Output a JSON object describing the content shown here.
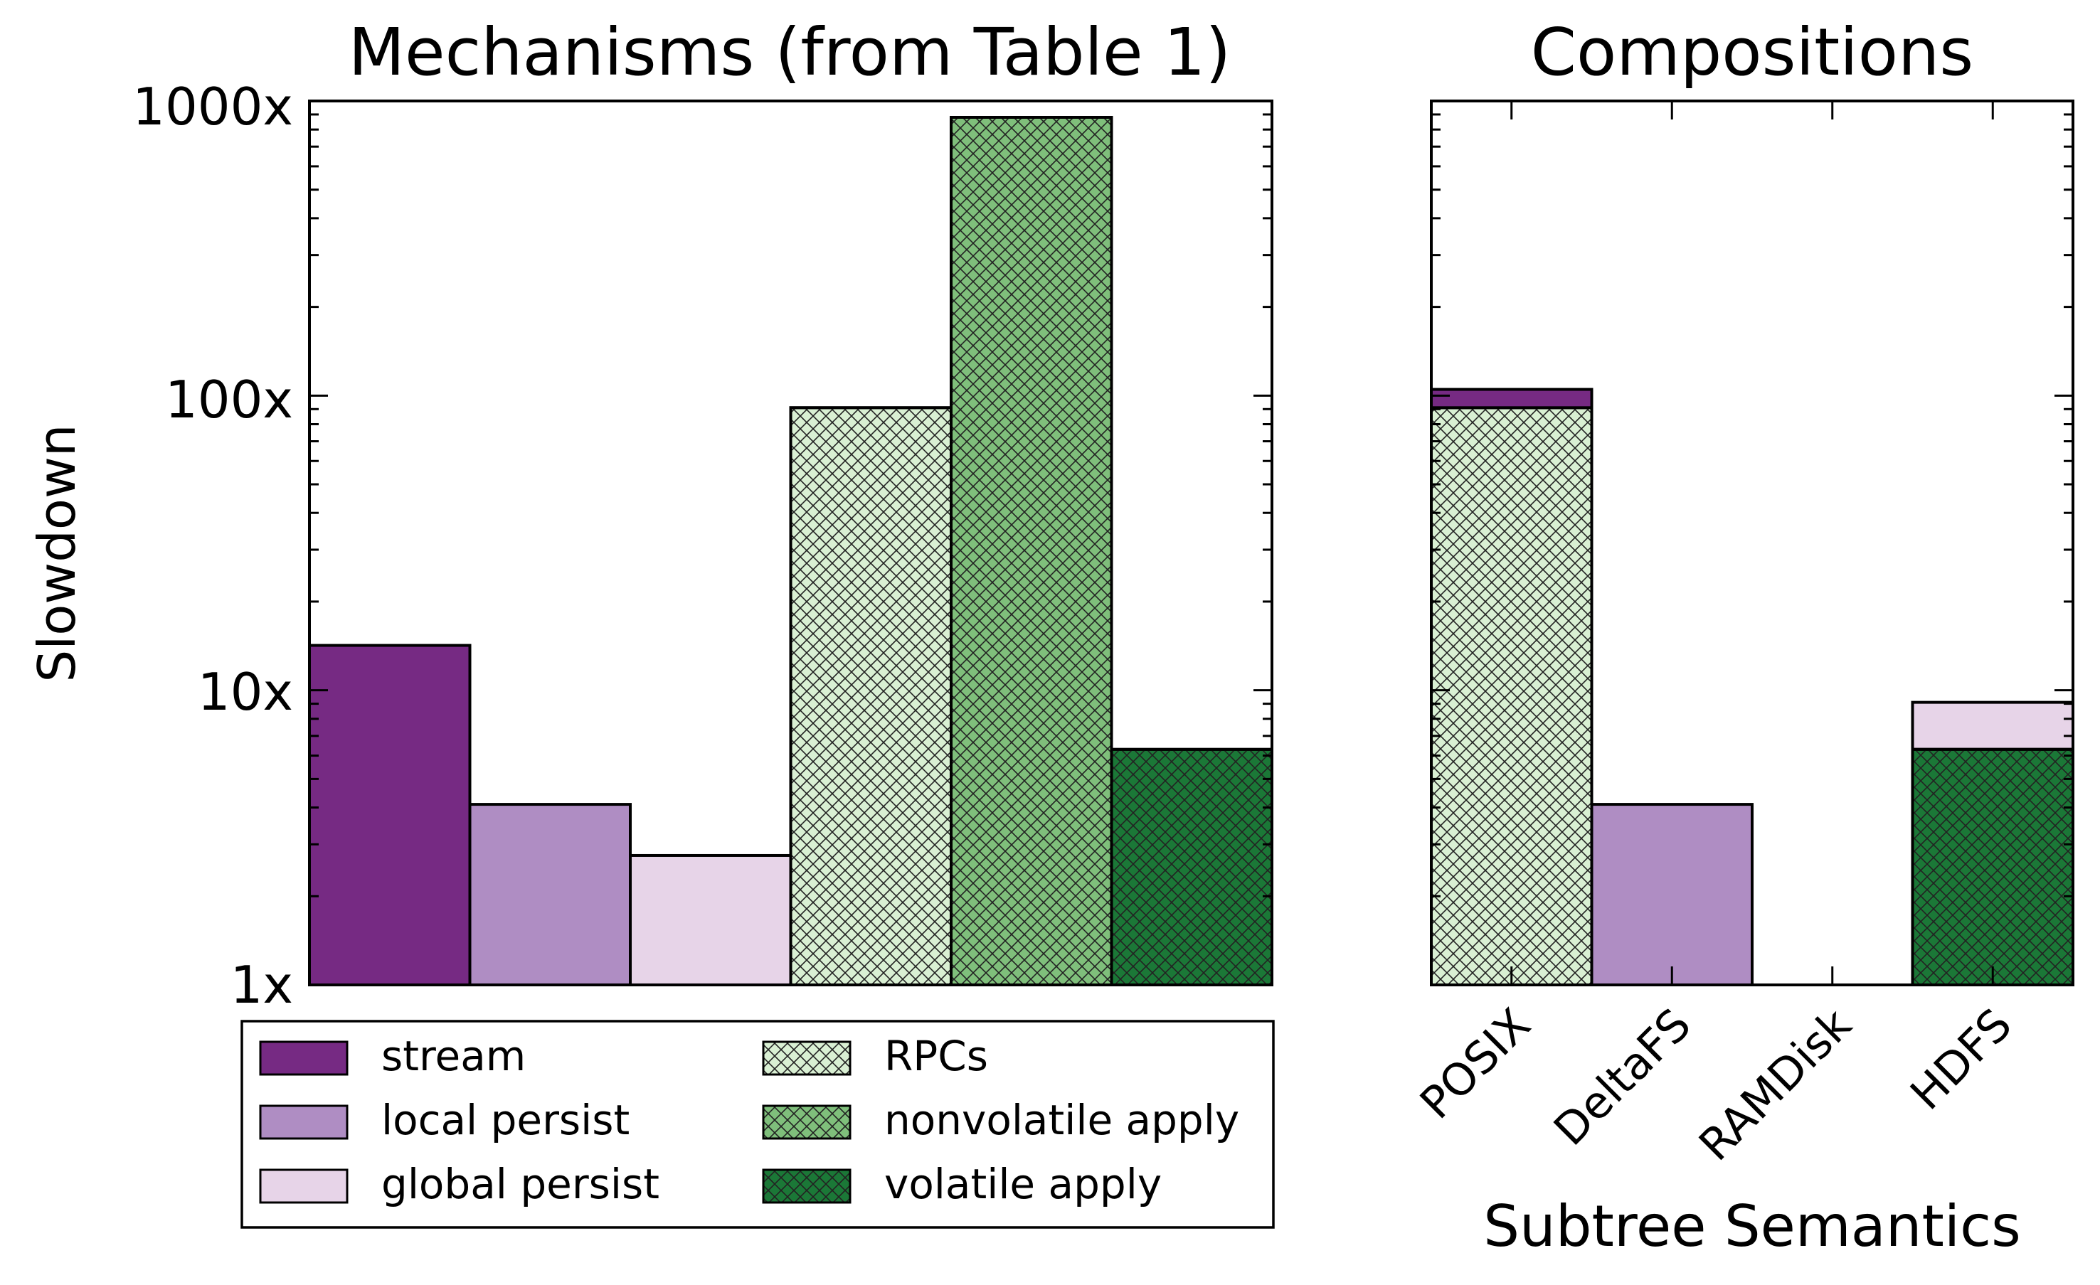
{
  "chart_data": [
    {
      "type": "bar",
      "title": "Mechanisms (from Table 1)",
      "xlabel": "",
      "ylabel": "Slowdown",
      "yscale": "log",
      "ylim": [
        1,
        1000
      ],
      "yticks": [
        "1x",
        "10x",
        "100x",
        "1000x"
      ],
      "grid": false,
      "legend_position": "below",
      "categories": [
        "stream",
        "local persist",
        "global persist",
        "RPCs",
        "nonvolatile apply",
        "volatile apply"
      ],
      "values": [
        14.2,
        4.1,
        2.75,
        91,
        880,
        6.3
      ],
      "colors": [
        "#762a83",
        "#af8dc3",
        "#e7d4e8",
        "#d9f0d3",
        "#7fbf7b",
        "#1b7837"
      ],
      "hatched": [
        false,
        false,
        false,
        true,
        true,
        true
      ],
      "legend": {
        "col1": [
          "stream",
          "local persist",
          "global persist"
        ],
        "col2": [
          "RPCs",
          "nonvolatile apply",
          "volatile apply"
        ]
      }
    },
    {
      "type": "bar",
      "stacked": true,
      "title": "Compositions",
      "xlabel": "Subtree Semantics",
      "ylabel": "",
      "yscale": "log",
      "ylim": [
        1,
        1000
      ],
      "grid": false,
      "categories": [
        "POSIX",
        "DeltaFS",
        "RAMDisk",
        "HDFS"
      ],
      "series": [
        {
          "name": "RPCs",
          "values": [
            91,
            0,
            0,
            0
          ]
        },
        {
          "name": "stream",
          "values": [
            14.2,
            0,
            0,
            0
          ]
        },
        {
          "name": "local persist",
          "values": [
            0,
            4.1,
            0,
            0
          ]
        },
        {
          "name": "volatile apply",
          "values": [
            0,
            0,
            0,
            6.3
          ]
        },
        {
          "name": "global persist",
          "values": [
            0,
            0,
            0,
            2.75
          ]
        }
      ],
      "totals": [
        105,
        4.1,
        1,
        9.1
      ]
    }
  ]
}
